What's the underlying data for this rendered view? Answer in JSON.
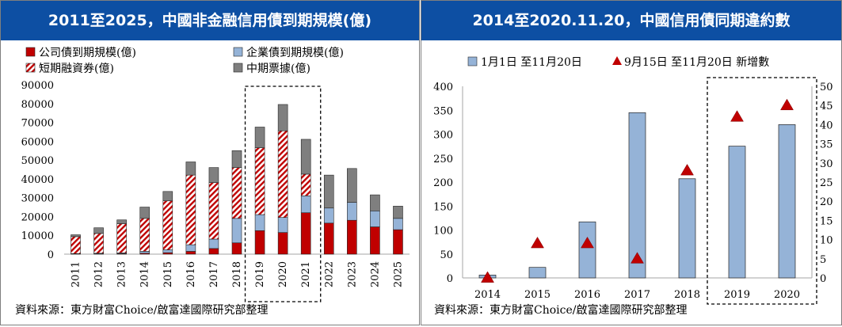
{
  "left_panel": {
    "title": "2011至2025，中國非金融信用債到期規模(億)",
    "source": "資料來源：東方財富Choice/啟富達國際研究部整理"
  },
  "right_panel": {
    "title": "2014至2020.11.20，中國信用債同期違約數",
    "source": "資料來源：東方財富Choice/啟富達國際研究部整理"
  },
  "chart_data": [
    {
      "type": "bar",
      "stacked": true,
      "title": "2011至2025，中國非金融信用債到期規模(億)",
      "categories": [
        "2011",
        "2012",
        "2013",
        "2014",
        "2015",
        "2016",
        "2017",
        "2018",
        "2019",
        "2020",
        "2021",
        "2022",
        "2023",
        "2024",
        "2025"
      ],
      "ylim": [
        0,
        90000
      ],
      "yticks": [
        0,
        10000,
        20000,
        30000,
        40000,
        50000,
        60000,
        70000,
        80000,
        90000
      ],
      "legend_position": "top",
      "highlight_categories": [
        "2019",
        "2020",
        "2021"
      ],
      "series": [
        {
          "name": "公司債到期規模(億)",
          "color": "#c00000",
          "pattern": "solid",
          "values": [
            100,
            200,
            300,
            500,
            800,
            1500,
            3000,
            6000,
            12500,
            11500,
            22000,
            16500,
            18000,
            14500,
            13000
          ]
        },
        {
          "name": "企業債到期規模(億)",
          "color": "#95b3d7",
          "pattern": "solid",
          "values": [
            200,
            300,
            400,
            1000,
            1500,
            3500,
            5000,
            13000,
            8500,
            8000,
            9000,
            8000,
            9500,
            8500,
            6000
          ]
        },
        {
          "name": "短期融資券(億)",
          "color": "#c00000",
          "pattern": "hatch",
          "values": [
            9000,
            10500,
            15500,
            17500,
            26000,
            37000,
            30000,
            27000,
            35500,
            46000,
            11500,
            0,
            0,
            0,
            0
          ]
        },
        {
          "name": "中期票據(億)",
          "color": "#7f7f7f",
          "pattern": "solid",
          "values": [
            1000,
            3000,
            2000,
            6000,
            5000,
            7000,
            8000,
            9000,
            11000,
            14000,
            18500,
            17500,
            18000,
            8500,
            6500
          ]
        }
      ]
    },
    {
      "type": "bar",
      "title": "2014至2020.11.20，中國信用債同期違約數",
      "categories": [
        "2014",
        "2015",
        "2016",
        "2017",
        "2018",
        "2019",
        "2020"
      ],
      "ylim": [
        0,
        400
      ],
      "yticks": [
        0,
        50,
        100,
        150,
        200,
        250,
        300,
        350,
        400
      ],
      "y2lim": [
        0,
        50
      ],
      "y2ticks": [
        0,
        5,
        10,
        15,
        20,
        25,
        30,
        35,
        40,
        45,
        50
      ],
      "legend_position": "top",
      "highlight_categories": [
        "2019",
        "2020"
      ],
      "series": [
        {
          "name": "1月1日 至11月20日",
          "type": "bar",
          "axis": "left",
          "color": "#95b3d7",
          "values": [
            6,
            22,
            117,
            345,
            207,
            275,
            320
          ]
        },
        {
          "name": "9月15日 至11月20日 新增數",
          "type": "scatter",
          "marker": "triangle",
          "axis": "right",
          "color": "#c00000",
          "values": [
            0,
            9,
            9,
            5,
            28,
            42,
            45
          ]
        }
      ]
    }
  ]
}
